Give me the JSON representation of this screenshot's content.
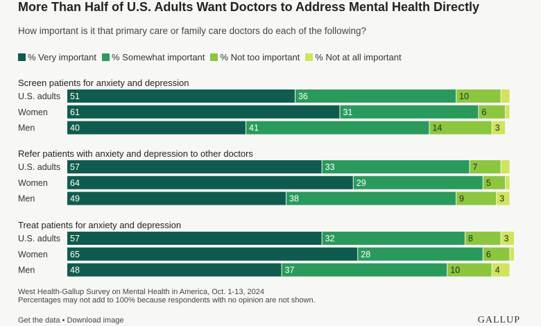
{
  "title": "More Than Half of U.S. Adults Want Doctors to Address Mental Health Directly",
  "subtitle": "How important is it that primary care or family care doctors do each of the following?",
  "legend": [
    {
      "label": "% Very important",
      "color": "#0f5c4e"
    },
    {
      "label": "% Somewhat important",
      "color": "#2a9a5c"
    },
    {
      "label": "% Not too important",
      "color": "#8cc63f"
    },
    {
      "label": "% Not at all important",
      "color": "#d0e45c"
    }
  ],
  "chart_data": {
    "type": "bar",
    "orientation": "horizontal",
    "stacked": true,
    "series_names": [
      "% Very important",
      "% Somewhat important",
      "% Not too important",
      "% Not at all important"
    ],
    "colors": [
      "#0f5c4e",
      "#2a9a5c",
      "#8cc63f",
      "#d0e45c"
    ],
    "groups": [
      {
        "title": "Screen patients for anxiety and depression",
        "rows": [
          {
            "label": "U.S. adults",
            "values": [
              51,
              36,
              10,
              2
            ],
            "labels": [
              "51",
              "36",
              "10",
              ""
            ]
          },
          {
            "label": "Women",
            "values": [
              61,
              31,
              6,
              1
            ],
            "labels": [
              "61",
              "31",
              "6",
              ""
            ]
          },
          {
            "label": "Men",
            "values": [
              40,
              41,
              14,
              3
            ],
            "labels": [
              "40",
              "41",
              "14",
              "3"
            ]
          }
        ]
      },
      {
        "title": "Refer patients with anxiety and depression to other doctors",
        "rows": [
          {
            "label": "U.S. adults",
            "values": [
              57,
              33,
              7,
              2
            ],
            "labels": [
              "57",
              "33",
              "7",
              ""
            ]
          },
          {
            "label": "Women",
            "values": [
              64,
              29,
              5,
              1
            ],
            "labels": [
              "64",
              "29",
              "5",
              ""
            ]
          },
          {
            "label": "Men",
            "values": [
              49,
              38,
              9,
              3
            ],
            "labels": [
              "49",
              "38",
              "9",
              "3"
            ]
          }
        ]
      },
      {
        "title": "Treat patients for anxiety and depression",
        "rows": [
          {
            "label": "U.S. adults",
            "values": [
              57,
              32,
              8,
              3
            ],
            "labels": [
              "57",
              "32",
              "8",
              "3"
            ]
          },
          {
            "label": "Women",
            "values": [
              65,
              28,
              6,
              1
            ],
            "labels": [
              "65",
              "28",
              "6",
              ""
            ]
          },
          {
            "label": "Men",
            "values": [
              48,
              37,
              10,
              4
            ],
            "labels": [
              "48",
              "37",
              "10",
              "4"
            ]
          }
        ]
      }
    ]
  },
  "notes": [
    "West Health-Gallup Survey on Mental Health in America, Oct. 1-13, 2024",
    "Percentages may not add to 100% because respondents with no opinion are not shown."
  ],
  "footer": {
    "get_data": "Get the data",
    "separator": " • ",
    "download": "Download image",
    "brand": "GALLUP"
  }
}
